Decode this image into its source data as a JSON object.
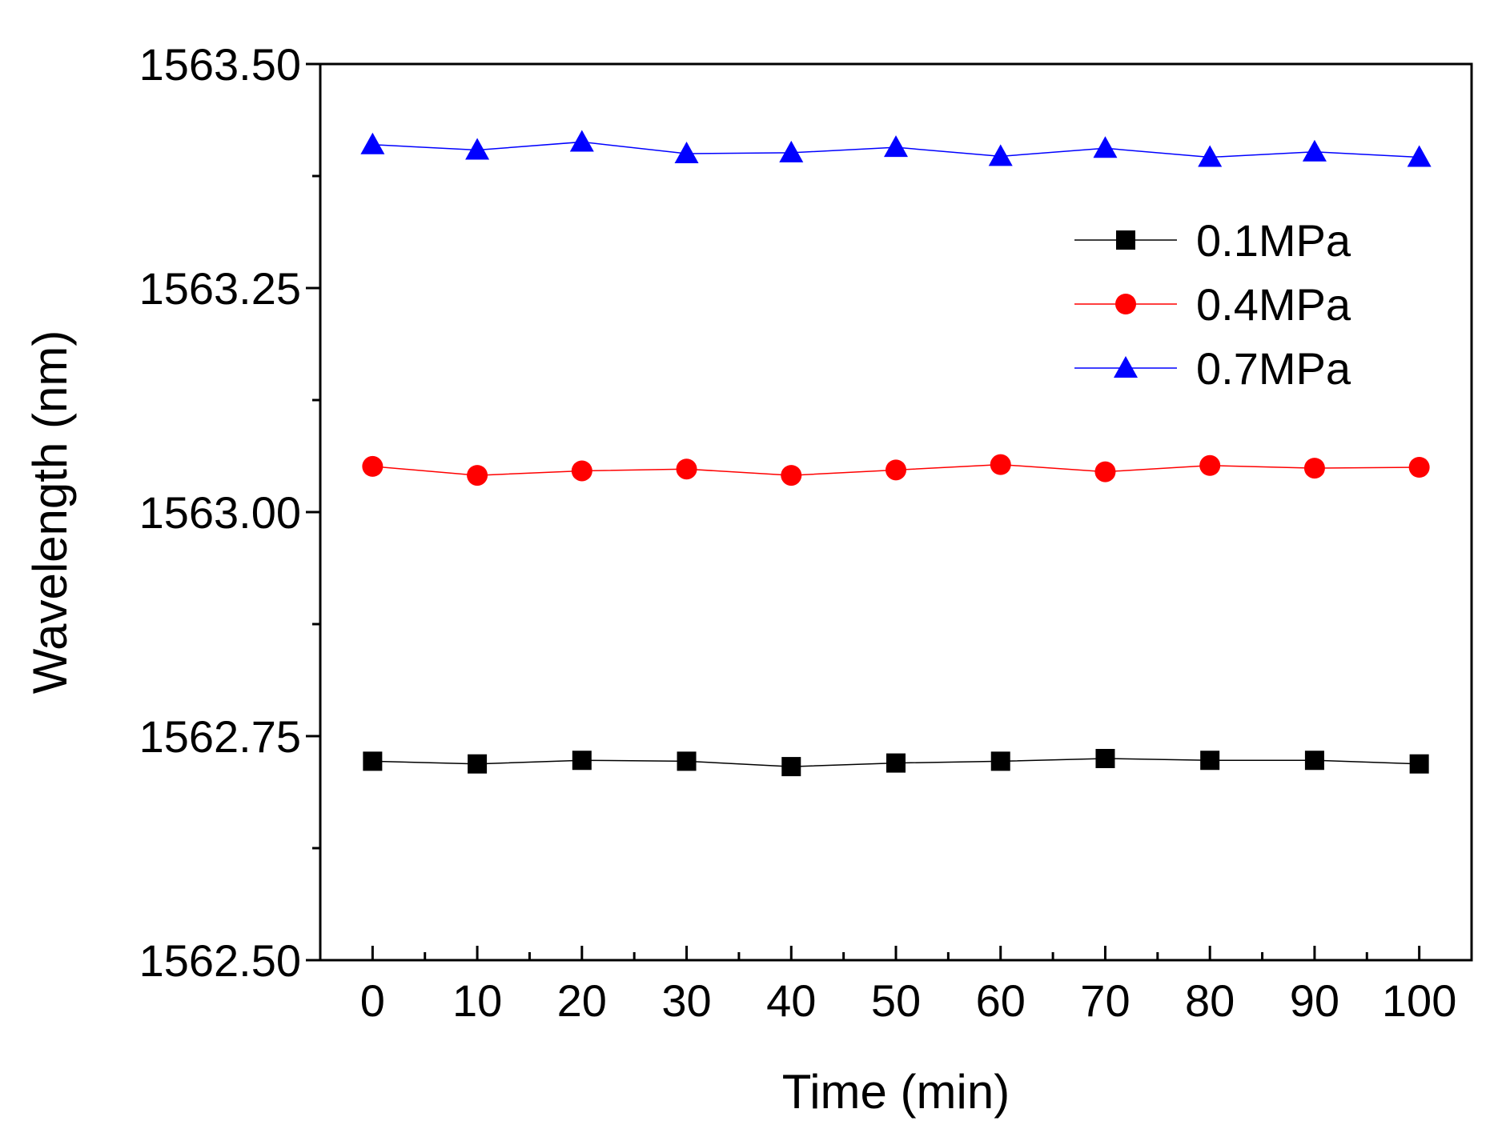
{
  "chart_data": {
    "type": "line",
    "title": "",
    "xlabel": "Time (min)",
    "ylabel": "Wavelength (nm)",
    "xlim": [
      -5,
      105
    ],
    "ylim": [
      1562.5,
      1563.5
    ],
    "x_ticks": [
      0,
      10,
      20,
      30,
      40,
      50,
      60,
      70,
      80,
      90,
      100
    ],
    "x_tick_labels": [
      "0",
      "10",
      "20",
      "30",
      "40",
      "50",
      "60",
      "70",
      "80",
      "90",
      "100"
    ],
    "y_ticks": [
      1562.5,
      1562.75,
      1563.0,
      1563.25,
      1563.5
    ],
    "y_tick_labels": [
      "1562.50",
      "1562.75",
      "1563.00",
      "1563.25",
      "1563.50"
    ],
    "y_minor_ticks": [
      1562.625,
      1562.875,
      1563.125,
      1563.375
    ],
    "grid": false,
    "legend_position": "top-right",
    "x": [
      0,
      10,
      20,
      30,
      40,
      50,
      60,
      70,
      80,
      90,
      100
    ],
    "series": [
      {
        "name": "0.1MPa",
        "color": "#000000",
        "marker": "square",
        "values": [
          1562.722,
          1562.719,
          1562.723,
          1562.722,
          1562.716,
          1562.72,
          1562.722,
          1562.725,
          1562.723,
          1562.723,
          1562.719
        ]
      },
      {
        "name": "0.4MPa",
        "color": "#ff0000",
        "marker": "circle",
        "values": [
          1563.051,
          1563.041,
          1563.046,
          1563.048,
          1563.041,
          1563.047,
          1563.053,
          1563.045,
          1563.052,
          1563.049,
          1563.05
        ]
      },
      {
        "name": "0.7MPa",
        "color": "#0000ff",
        "marker": "triangle",
        "values": [
          1563.41,
          1563.404,
          1563.413,
          1563.4,
          1563.401,
          1563.407,
          1563.397,
          1563.406,
          1563.396,
          1563.402,
          1563.396
        ]
      }
    ]
  }
}
